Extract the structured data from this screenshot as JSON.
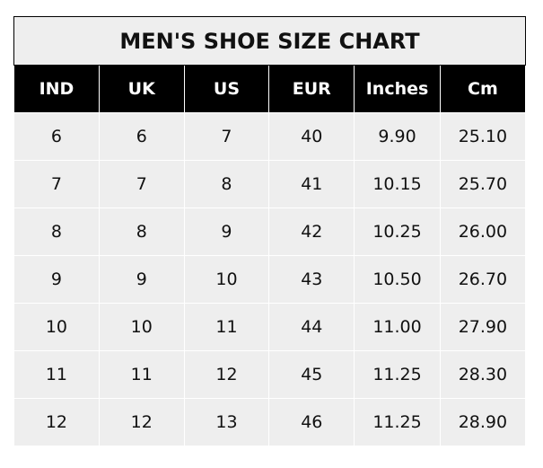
{
  "title": "MEN'S SHOE SIZE CHART",
  "headers": [
    "IND",
    "UK",
    "US",
    "EUR",
    "Inches",
    "Cm"
  ],
  "rows": [
    [
      "6",
      "6",
      "7",
      "40",
      "9.90",
      "25.10"
    ],
    [
      "7",
      "7",
      "8",
      "41",
      "10.15",
      "25.70"
    ],
    [
      "8",
      "8",
      "9",
      "42",
      "10.25",
      "26.00"
    ],
    [
      "9",
      "9",
      "10",
      "43",
      "10.50",
      "26.70"
    ],
    [
      "10",
      "10",
      "11",
      "44",
      "11.00",
      "27.90"
    ],
    [
      "11",
      "11",
      "12",
      "45",
      "11.25",
      "28.30"
    ],
    [
      "12",
      "12",
      "13",
      "46",
      "11.25",
      "28.90"
    ]
  ]
}
